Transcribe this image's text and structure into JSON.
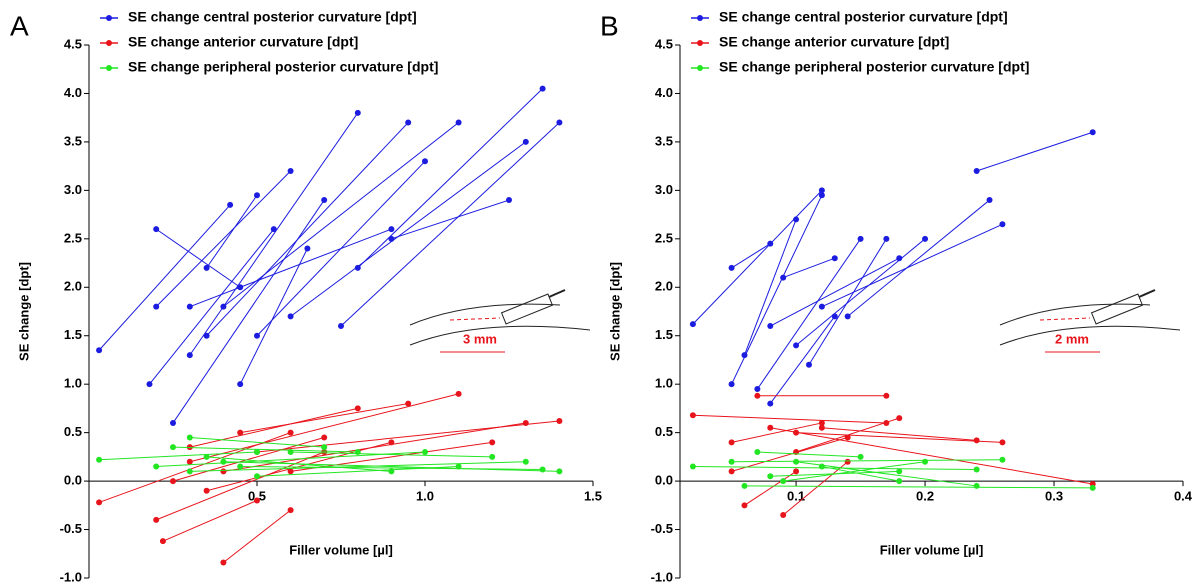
{
  "chart_data": [
    {
      "type": "scatter",
      "panel": "A",
      "xlabel": "Filler volume [µl]",
      "ylabel": "SE change [dpt]",
      "annotation": "3 mm",
      "xlim": [
        0,
        1.5
      ],
      "xticks": [
        0.5,
        {
          "value": 1,
          "label": "1.0"
        },
        1.5
      ],
      "ylim": [
        -1,
        4.5
      ],
      "yticks": [
        {
          "value": -1,
          "label": "-1.0"
        },
        -0.5,
        {
          "value": 0,
          "label": "0.0"
        },
        0.5,
        {
          "value": 1,
          "label": "1.0"
        },
        1.5,
        {
          "value": 2,
          "label": "2.0"
        },
        2.5,
        {
          "value": 3,
          "label": "3.0"
        },
        3.5,
        {
          "value": 4,
          "label": "4.0"
        },
        4.5
      ],
      "series": [
        {
          "name": "SE change central posterior curvature [dpt]",
          "color": "#1c1ce0",
          "x": [
            0.03,
            0.42,
            0.18,
            0.55,
            0.2,
            0.6,
            0.25,
            0.7,
            0.3,
            0.8,
            0.35,
            0.95,
            0.4,
            1.1,
            0.5,
            1.0,
            0.6,
            1.3,
            0.75,
            1.4,
            0.8,
            1.35,
            0.9,
            1.25,
            0.2,
            0.45,
            0.35,
            0.5,
            0.45,
            0.65,
            0.3,
            0.9
          ],
          "values": [
            1.35,
            2.85,
            1.0,
            2.6,
            1.8,
            3.2,
            0.6,
            2.9,
            1.3,
            3.8,
            1.5,
            3.7,
            1.8,
            3.7,
            1.5,
            3.3,
            1.7,
            3.5,
            1.6,
            3.7,
            2.2,
            4.05,
            2.5,
            2.9,
            2.6,
            2.0,
            2.2,
            2.95,
            1.0,
            2.4,
            1.8,
            2.6
          ]
        },
        {
          "name": "SE change anterior curvature [dpt]",
          "color": "#e8141b",
          "x": [
            0.03,
            0.6,
            0.2,
            0.7,
            0.22,
            0.5,
            0.4,
            0.6,
            0.3,
            1.1,
            0.4,
            1.3,
            0.5,
            1.4,
            0.3,
            0.8,
            0.6,
            1.2,
            0.35,
            0.9,
            0.45,
            0.95,
            0.25,
            0.7
          ],
          "values": [
            -0.22,
            0.5,
            -0.4,
            0.3,
            -0.62,
            -0.2,
            -0.84,
            -0.3,
            0.2,
            0.9,
            0.1,
            0.6,
            0.3,
            0.62,
            0.35,
            0.75,
            0.1,
            0.4,
            -0.1,
            0.4,
            0.5,
            0.8,
            0.0,
            0.45
          ]
        },
        {
          "name": "SE change peripheral posterior curvature [dpt]",
          "color": "#22e622",
          "x": [
            0.03,
            0.5,
            0.2,
            1.0,
            0.3,
            1.3,
            0.4,
            1.4,
            0.25,
            0.8,
            0.5,
            1.1,
            0.35,
            0.9,
            0.6,
            1.2,
            0.3,
            0.7,
            0.45,
            1.35
          ],
          "values": [
            0.22,
            0.3,
            0.15,
            0.3,
            0.1,
            0.2,
            0.2,
            0.1,
            0.35,
            0.3,
            0.05,
            0.15,
            0.25,
            0.1,
            0.3,
            0.25,
            0.45,
            0.35,
            0.15,
            0.12
          ]
        }
      ]
    },
    {
      "type": "scatter",
      "panel": "B",
      "xlabel": "Filler volume [µl]",
      "ylabel": "SE change [dpt]",
      "annotation": "2 mm",
      "xlim": [
        0.01,
        0.4
      ],
      "xticks": [
        0.1,
        0.2,
        0.3,
        0.4
      ],
      "ylim": [
        -1,
        4.5
      ],
      "yticks": [
        {
          "value": -1,
          "label": "-1.0"
        },
        -0.5,
        {
          "value": 0,
          "label": "0.0"
        },
        0.5,
        {
          "value": 1,
          "label": "1.0"
        },
        1.5,
        {
          "value": 2,
          "label": "2.0"
        },
        2.5,
        {
          "value": 3,
          "label": "3.0"
        },
        3.5,
        {
          "value": 4,
          "label": "4.0"
        },
        4.5
      ],
      "series": [
        {
          "name": "SE change central posterior curvature [dpt]",
          "color": "#1c1ce0",
          "x": [
            0.02,
            0.12,
            0.05,
            0.12,
            0.06,
            0.1,
            0.07,
            0.15,
            0.08,
            0.18,
            0.09,
            0.13,
            0.1,
            0.2,
            0.11,
            0.17,
            0.12,
            0.26,
            0.14,
            0.25,
            0.24,
            0.33,
            0.08,
            0.13,
            0.05,
            0.08
          ],
          "values": [
            1.62,
            3.0,
            1.0,
            2.95,
            1.3,
            2.7,
            0.95,
            2.5,
            1.6,
            2.3,
            2.1,
            2.3,
            1.4,
            2.5,
            1.2,
            2.5,
            1.8,
            2.65,
            1.7,
            2.9,
            3.2,
            3.6,
            0.8,
            1.7,
            2.2,
            2.45
          ]
        },
        {
          "name": "SE change anterior curvature [dpt]",
          "color": "#e8141b",
          "x": [
            0.02,
            0.17,
            0.05,
            0.12,
            0.06,
            0.1,
            0.07,
            0.17,
            0.08,
            0.33,
            0.1,
            0.26,
            0.09,
            0.14,
            0.1,
            0.18,
            0.12,
            0.24,
            0.05,
            0.14
          ],
          "values": [
            0.68,
            0.6,
            0.4,
            0.6,
            -0.25,
            0.1,
            0.88,
            0.88,
            0.55,
            -0.03,
            0.5,
            0.4,
            -0.35,
            0.2,
            0.3,
            0.65,
            0.55,
            0.42,
            0.1,
            0.45
          ]
        },
        {
          "name": "SE change peripheral posterior curvature [dpt]",
          "color": "#22e622",
          "x": [
            0.02,
            0.24,
            0.05,
            0.26,
            0.06,
            0.33,
            0.08,
            0.18,
            0.1,
            0.24,
            0.07,
            0.15,
            0.09,
            0.2,
            0.12,
            0.18
          ],
          "values": [
            0.15,
            0.12,
            0.2,
            0.22,
            -0.05,
            -0.07,
            0.05,
            0.1,
            0.2,
            -0.05,
            0.3,
            0.25,
            0.0,
            0.2,
            0.15,
            0.0
          ]
        }
      ]
    }
  ]
}
